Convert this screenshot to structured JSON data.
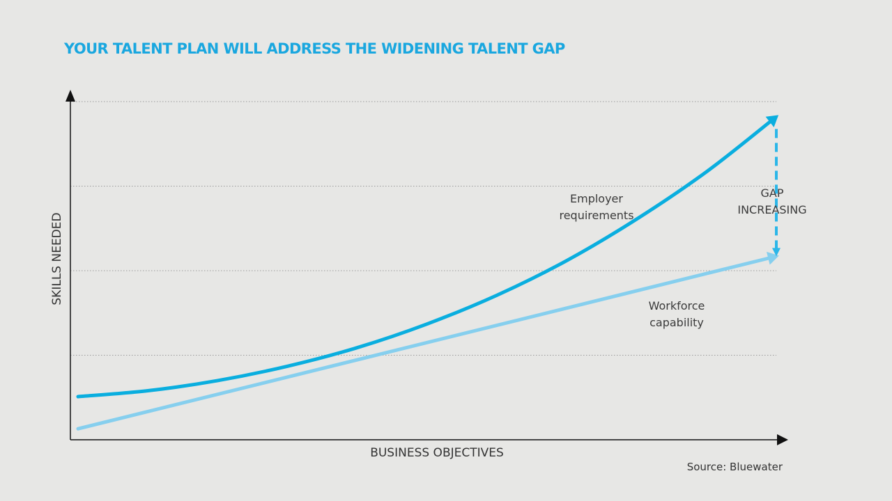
{
  "chart_data": {
    "type": "line",
    "title": "YOUR TALENT PLAN WILL ADDRESS THE WIDENING TALENT GAP",
    "xlabel": "BUSINESS OBJECTIVES",
    "ylabel": "SKILLS NEEDED",
    "source": "Source: Bluewater",
    "xlim": [
      0,
      10
    ],
    "ylim": [
      0,
      4
    ],
    "grid": "horizontal dotted",
    "axis_ticks": "none",
    "series": [
      {
        "name": "Employer requirements",
        "label_lines": [
          "Employer",
          "requirements"
        ],
        "color": "#0aaedf",
        "style": "curve with arrowhead",
        "x": [
          0,
          1,
          2,
          3,
          4,
          5,
          6,
          7,
          8,
          9,
          10
        ],
        "y": [
          0.51,
          0.58,
          0.7,
          0.87,
          1.09,
          1.37,
          1.71,
          2.12,
          2.61,
          3.17,
          3.82
        ]
      },
      {
        "name": "Workforce capability",
        "label_lines": [
          "Workforce",
          "capability"
        ],
        "color": "#86cfee",
        "style": "straight line with arrowhead",
        "x": [
          0,
          10
        ],
        "y": [
          0.13,
          2.17
        ]
      }
    ],
    "annotations": [
      {
        "lines": [
          "GAP",
          "INCREASING"
        ],
        "type": "dashed vertical double arrow",
        "x": 10,
        "y_from": 2.17,
        "y_to": 3.82,
        "color": "#2bb6e8"
      }
    ]
  }
}
